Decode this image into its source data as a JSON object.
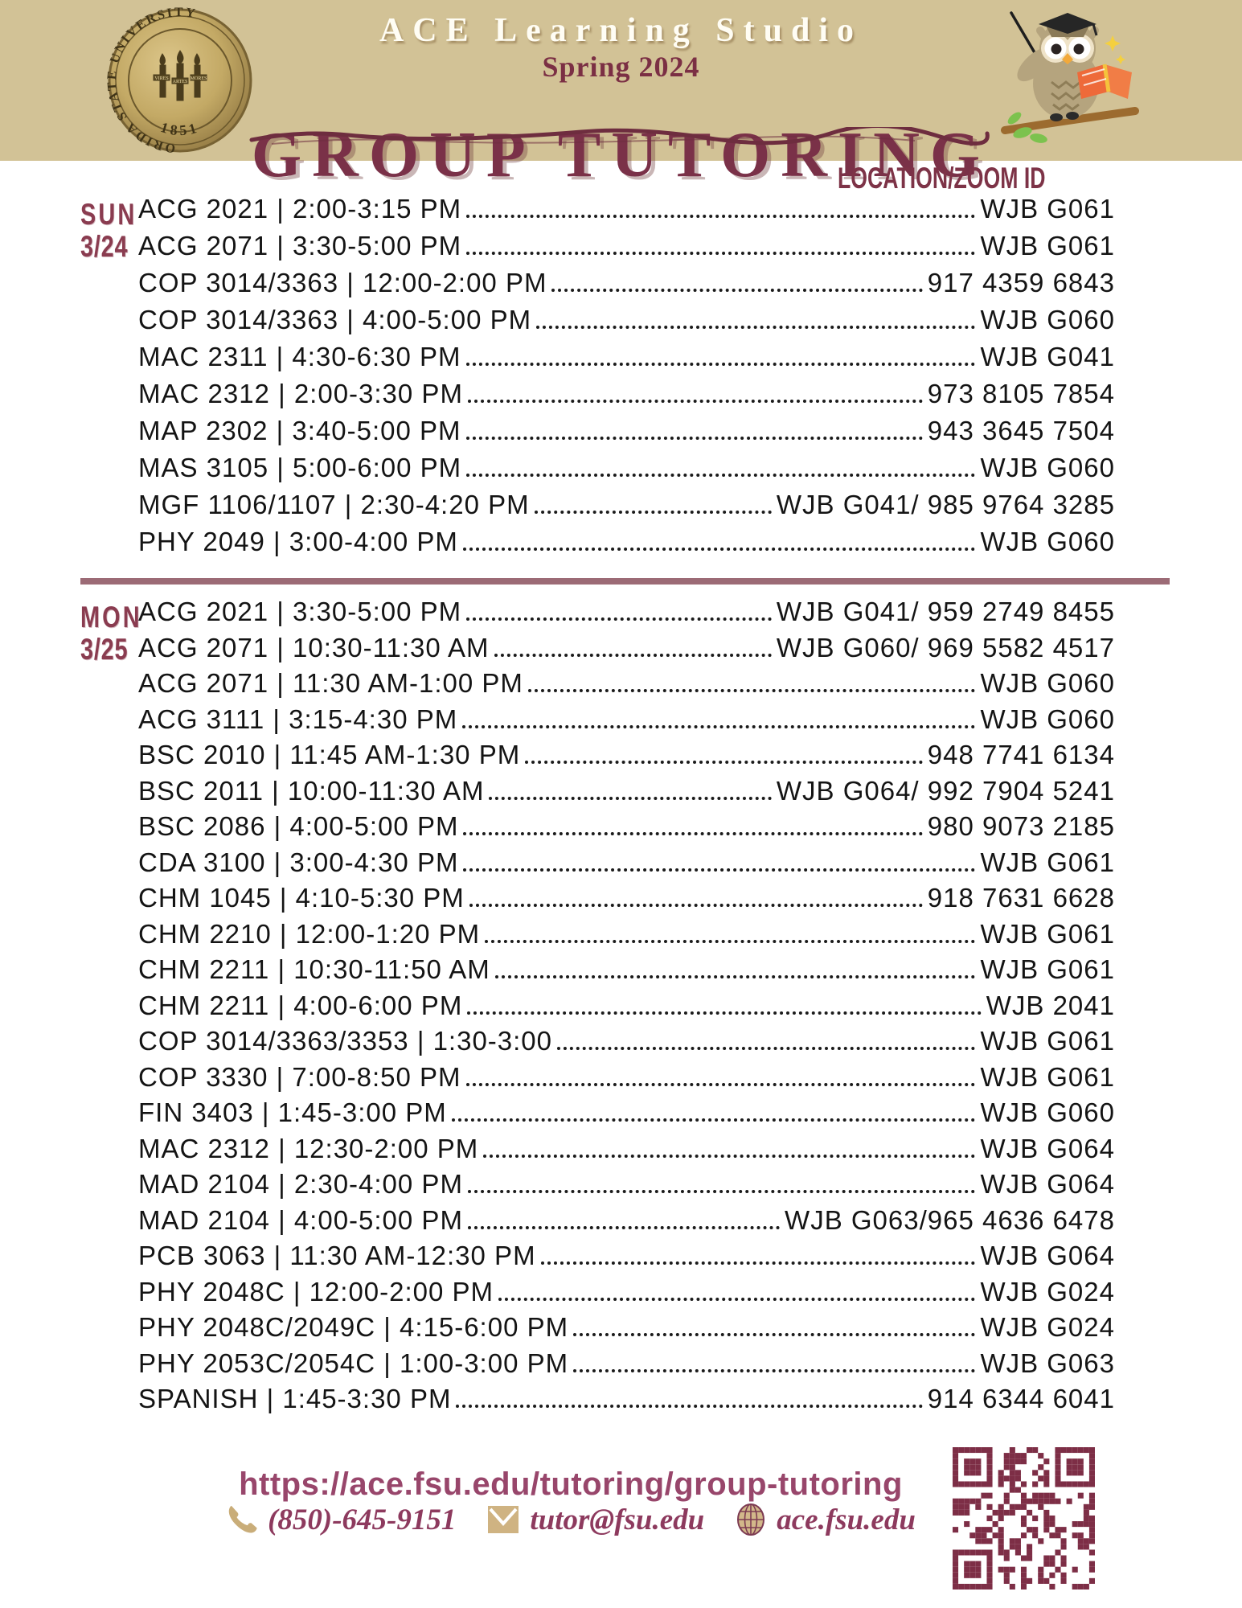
{
  "header": {
    "studio": "ACE Learning Studio",
    "semester": "Spring 2024",
    "title": "GROUP TUTORING",
    "seal": {
      "ring_text": "FLORIDA STATE UNIVERSITY",
      "year": "1851",
      "mottos": [
        "VIRES",
        "ARTES",
        "MORES"
      ]
    }
  },
  "table": {
    "column_header": "LOCATION/ZOOM ID",
    "sections": [
      {
        "day": "SUN",
        "date": "3/24",
        "rows": [
          {
            "label": "ACG 2021 | 2:00-3:15 PM",
            "location": "WJB G061"
          },
          {
            "label": "ACG 2071 | 3:30-5:00 PM",
            "location": "WJB G061"
          },
          {
            "label": "COP 3014/3363 | 12:00-2:00 PM",
            "location": "917 4359 6843"
          },
          {
            "label": "COP 3014/3363 | 4:00-5:00 PM",
            "location": "WJB G060"
          },
          {
            "label": "MAC 2311 | 4:30-6:30 PM",
            "location": "WJB G041"
          },
          {
            "label": "MAC 2312 | 2:00-3:30 PM",
            "location": "973 8105 7854"
          },
          {
            "label": "MAP 2302 | 3:40-5:00 PM",
            "location": "943 3645 7504"
          },
          {
            "label": "MAS 3105 | 5:00-6:00 PM",
            "location": "WJB G060"
          },
          {
            "label": "MGF 1106/1107 | 2:30-4:20 PM",
            "location": "WJB G041/ 985 9764 3285"
          },
          {
            "label": "PHY 2049 | 3:00-4:00 PM",
            "location": "WJB G060"
          }
        ]
      },
      {
        "day": "MON",
        "date": "3/25",
        "rows": [
          {
            "label": "ACG 2021 | 3:30-5:00 PM",
            "location": "WJB G041/ 959 2749 8455"
          },
          {
            "label": "ACG 2071 | 10:30-11:30 AM",
            "location": "WJB G060/ 969 5582 4517"
          },
          {
            "label": "ACG 2071 | 11:30 AM-1:00 PM",
            "location": "WJB G060"
          },
          {
            "label": "ACG 3111 | 3:15-4:30 PM",
            "location": "WJB G060"
          },
          {
            "label": "BSC 2010 | 11:45 AM-1:30 PM",
            "location": "948 7741 6134"
          },
          {
            "label": "BSC 2011 | 10:00-11:30 AM",
            "location": "WJB G064/ 992 7904 5241"
          },
          {
            "label": "BSC 2086 | 4:00-5:00 PM",
            "location": "980 9073 2185"
          },
          {
            "label": "CDA 3100 | 3:00-4:30 PM",
            "location": "WJB G061"
          },
          {
            "label": "CHM 1045 | 4:10-5:30 PM",
            "location": "918 7631 6628"
          },
          {
            "label": "CHM 2210 | 12:00-1:20 PM",
            "location": "WJB G061"
          },
          {
            "label": "CHM 2211 | 10:30-11:50 AM",
            "location": "WJB G061"
          },
          {
            "label": "CHM 2211 | 4:00-6:00 PM",
            "location": "WJB 2041"
          },
          {
            "label": "COP 3014/3363/3353 | 1:30-3:00",
            "location": "WJB G061"
          },
          {
            "label": "COP 3330 | 7:00-8:50 PM",
            "location": "WJB G061"
          },
          {
            "label": "FIN 3403 | 1:45-3:00 PM",
            "location": "WJB G060"
          },
          {
            "label": "MAC 2312 | 12:30-2:00 PM",
            "location": "WJB G064"
          },
          {
            "label": "MAD 2104 | 2:30-4:00 PM",
            "location": "WJB G064"
          },
          {
            "label": "MAD 2104 | 4:00-5:00 PM",
            "location": "WJB G063/965 4636 6478"
          },
          {
            "label": "PCB 3063 | 11:30 AM-12:30 PM",
            "location": "WJB G064"
          },
          {
            "label": "PHY 2048C | 12:00-2:00 PM",
            "location": "WJB G024"
          },
          {
            "label": "PHY 2048C/2049C | 4:15-6:00 PM",
            "location": "WJB G024"
          },
          {
            "label": "PHY 2053C/2054C | 1:00-3:00 PM",
            "location": "WJB G063"
          },
          {
            "label": "SPANISH | 1:45-3:30 PM",
            "location": "914 6344 6041"
          }
        ]
      }
    ]
  },
  "footer": {
    "url": "https://ace.fsu.edu/tutoring/group-tutoring",
    "phone": "(850)-645-9151",
    "email": "tutor@fsu.edu",
    "website": "ace.fsu.edu"
  },
  "colors": {
    "band_tan": "#d2c296",
    "garnet_title": "#7a3148",
    "day_label": "#8a3c50",
    "divider_mauve": "#9c6b76",
    "row_text": "#141414",
    "url_pink": "#98466b",
    "contact_text": "#8d3a5e",
    "icon_gold": "#c9ad79",
    "qr_maroon": "#7d2e46",
    "seal_gold": "#c3a965"
  }
}
